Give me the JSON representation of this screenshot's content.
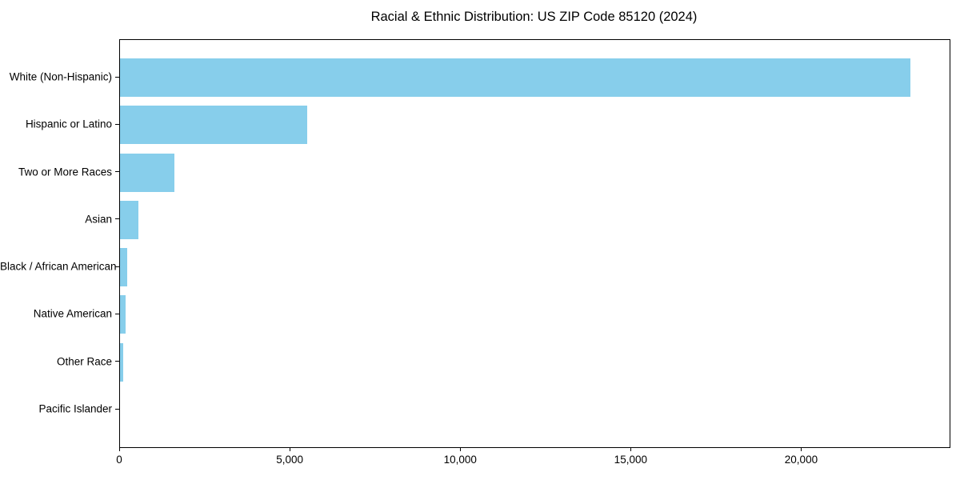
{
  "figure": {
    "background": "#ffffff"
  },
  "chart_data": {
    "type": "bar",
    "orientation": "horizontal",
    "title": "Racial & Ethnic Distribution: US ZIP Code 85120 (2024)",
    "categories": [
      "White (Non-Hispanic)",
      "Hispanic or Latino",
      "Two or More Races",
      "Asian",
      "Black / African American",
      "Native American",
      "Other Race",
      "Pacific Islander"
    ],
    "values": [
      23170,
      5490,
      1600,
      540,
      200,
      170,
      90,
      0
    ],
    "bar_color": "#87CEEB",
    "axis_color": "#000000",
    "text_color": "#000000",
    "xlabel": "",
    "ylabel": "",
    "xlim": [
      0,
      24330
    ],
    "xticks": [
      {
        "value": 0,
        "label": "0"
      },
      {
        "value": 5000,
        "label": "5,000"
      },
      {
        "value": 10000,
        "label": "10,000"
      },
      {
        "value": 15000,
        "label": "15,000"
      },
      {
        "value": 20000,
        "label": "20,000"
      }
    ],
    "grid": false,
    "legend": null
  }
}
